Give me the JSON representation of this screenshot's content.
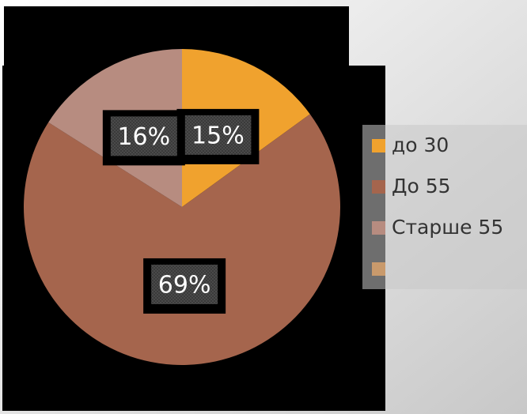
{
  "chart_data": {
    "type": "pie",
    "categories": [
      "до 30",
      "До 55",
      "Старше 55",
      null
    ],
    "values": [
      15,
      69,
      16,
      null
    ],
    "value_labels": [
      "15%",
      "69%",
      "16%",
      null
    ],
    "colors": [
      "#f0a22e",
      "#a5654d",
      "#b78c80",
      "#c99a6c"
    ],
    "legend": "right"
  }
}
